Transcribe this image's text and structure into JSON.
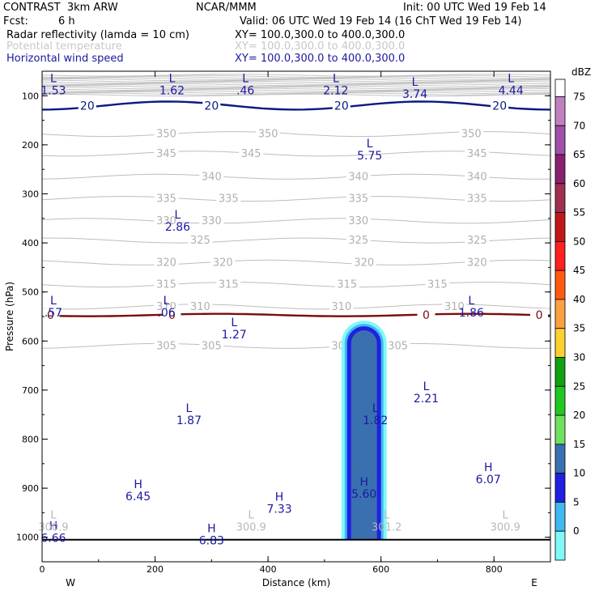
{
  "header": {
    "model": "CONTRAST  3km ARW",
    "org": "NCAR/MMM",
    "init": "Init: 00 UTC Wed 19 Feb 14",
    "fcst_label": "Fcst:",
    "fcst_value": "6 h",
    "valid": "Valid: 06 UTC Wed 19 Feb 14 (16 ChT Wed 19 Feb 14)",
    "fields": [
      {
        "name": "Radar reflectivity (lamda = 10 cm)",
        "xy": "XY= 100.0,300.0 to 400.0,300.0",
        "color": "#000000"
      },
      {
        "name": "Potential temperature",
        "xy": "XY= 100.0,300.0 to 400.0,300.0",
        "color": "#c8c8c8"
      },
      {
        "name": "Horizontal wind speed",
        "xy": "XY= 100.0,300.0 to 400.0,300.0",
        "color": "#1a1aa0"
      }
    ]
  },
  "chart_data": {
    "type": "cross-section",
    "xlabel": "Distance (km)",
    "ylabel": "Pressure (hPa)",
    "xlim": [
      0,
      900
    ],
    "ylim": [
      1050,
      50
    ],
    "x_ticks": [
      0,
      200,
      400,
      600,
      800
    ],
    "y_ticks": [
      100,
      200,
      300,
      400,
      500,
      600,
      700,
      800,
      900,
      1000
    ],
    "x_end_labels": {
      "left": "W",
      "right": "E"
    },
    "legend_title": "dBZ",
    "legend_levels": [
      {
        "value": "75",
        "color": "#c080c0"
      },
      {
        "value": "70",
        "color": "#a050a8"
      },
      {
        "value": "65",
        "color": "#8a2070"
      },
      {
        "value": "60",
        "color": "#a03050"
      },
      {
        "value": "55",
        "color": "#c01818"
      },
      {
        "value": "50",
        "color": "#ff2020"
      },
      {
        "value": "45",
        "color": "#ff5a10"
      },
      {
        "value": "40",
        "color": "#ffa040"
      },
      {
        "value": "35",
        "color": "#ffd030"
      },
      {
        "value": "30",
        "color": "#10a010"
      },
      {
        "value": "25",
        "color": "#20c820"
      },
      {
        "value": "20",
        "color": "#70e060"
      },
      {
        "value": "15",
        "color": "#3a70b0"
      },
      {
        "value": "10",
        "color": "#2020e0"
      },
      {
        "value": "5",
        "color": "#40b8f0"
      },
      {
        "value": "0",
        "color": "#80f8f8"
      }
    ],
    "theta_contours": [
      {
        "value": "350",
        "p": 178,
        "labels_x": [
          220,
          400,
          760
        ]
      },
      {
        "value": "345",
        "p": 218,
        "labels_x": [
          220,
          370,
          770
        ]
      },
      {
        "value": "340",
        "p": 265,
        "labels_x": [
          300,
          560,
          770
        ]
      },
      {
        "value": "335",
        "p": 310,
        "labels_x": [
          220,
          330,
          560,
          770
        ]
      },
      {
        "value": "330",
        "p": 355,
        "labels_x": [
          220,
          300,
          560
        ]
      },
      {
        "value": "325",
        "p": 395,
        "labels_x": [
          280,
          560,
          770
        ]
      },
      {
        "value": "320",
        "p": 440,
        "labels_x": [
          220,
          320,
          570,
          770
        ]
      },
      {
        "value": "315",
        "p": 485,
        "labels_x": [
          220,
          330,
          540,
          700
        ]
      },
      {
        "value": "310",
        "p": 530,
        "labels_x": [
          220,
          280,
          530,
          730
        ]
      },
      {
        "value": "305",
        "p": 610,
        "labels_x": [
          220,
          300,
          530,
          630
        ]
      }
    ],
    "wind_contours": [
      {
        "value": "20",
        "p": 120,
        "labels_x": [
          80,
          300,
          530,
          810
        ]
      },
      {
        "value": "0",
        "p": 547,
        "labels_x": [
          15,
          230,
          680,
          880
        ]
      }
    ],
    "reflectivity_column": {
      "x_range": [
        540,
        600
      ],
      "p_top": 570,
      "p_bottom": 1005,
      "max_dbz": "20"
    },
    "min_max_labels": [
      {
        "kind": "L",
        "value": "1.53",
        "x": 20,
        "p": 72
      },
      {
        "kind": "L",
        "value": "1.62",
        "x": 230,
        "p": 72
      },
      {
        "kind": "L",
        "value": ".46",
        "x": 360,
        "p": 72
      },
      {
        "kind": "L",
        "value": "2.12",
        "x": 520,
        "p": 72
      },
      {
        "kind": "L",
        "value": "3.74",
        "x": 660,
        "p": 80
      },
      {
        "kind": "L",
        "value": "4.44",
        "x": 830,
        "p": 72
      },
      {
        "kind": "L",
        "value": "5.75",
        "x": 580,
        "p": 205
      },
      {
        "kind": "L",
        "value": "2.86",
        "x": 240,
        "p": 350
      },
      {
        "kind": "L",
        "value": ".57",
        "x": 20,
        "p": 525
      },
      {
        "kind": "L",
        "value": ".06",
        "x": 220,
        "p": 525
      },
      {
        "kind": "L",
        "value": "1.86",
        "x": 760,
        "p": 525
      },
      {
        "kind": "L",
        "value": "1.27",
        "x": 340,
        "p": 570
      },
      {
        "kind": "L",
        "value": "2.21",
        "x": 680,
        "p": 700
      },
      {
        "kind": "L",
        "value": "1.87",
        "x": 260,
        "p": 745
      },
      {
        "kind": "L",
        "value": "1.82",
        "x": 590,
        "p": 745
      },
      {
        "kind": "H",
        "value": "6.45",
        "x": 170,
        "p": 900
      },
      {
        "kind": "H",
        "value": "7.33",
        "x": 420,
        "p": 925
      },
      {
        "kind": "H",
        "value": "5.60",
        "x": 570,
        "p": 895
      },
      {
        "kind": "H",
        "value": "6.07",
        "x": 790,
        "p": 865
      },
      {
        "kind": "H",
        "value": "6.66",
        "x": 20,
        "p": 985
      },
      {
        "kind": "H",
        "value": "6.83",
        "x": 300,
        "p": 990
      }
    ],
    "theta_minmax_labels": [
      {
        "kind": "L",
        "value": "300.9",
        "x": 20,
        "p": 962
      },
      {
        "kind": "L",
        "value": "300.9",
        "x": 370,
        "p": 962
      },
      {
        "kind": "L",
        "value": "301.2",
        "x": 610,
        "p": 962
      },
      {
        "kind": "L",
        "value": "300.9",
        "x": 820,
        "p": 962
      }
    ]
  }
}
